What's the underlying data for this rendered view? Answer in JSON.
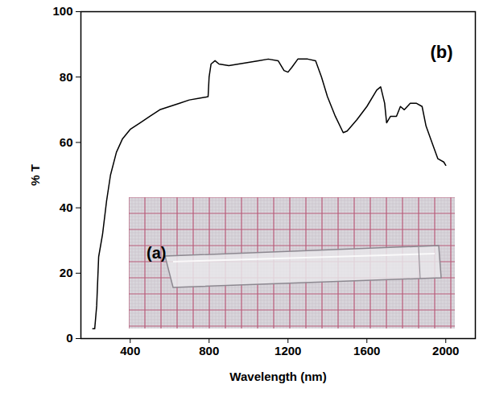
{
  "chart_data": {
    "type": "line",
    "x_label": "Wavelength (nm)",
    "y_label": "% T",
    "annotations": [
      "(b)",
      "(a)"
    ],
    "color": "#000000",
    "x": [
      210,
      220,
      230,
      240,
      260,
      280,
      300,
      330,
      360,
      400,
      450,
      500,
      550,
      600,
      650,
      700,
      750,
      795,
      800,
      810,
      830,
      850,
      900,
      950,
      1000,
      1050,
      1100,
      1150,
      1180,
      1200,
      1220,
      1250,
      1300,
      1340,
      1370,
      1400,
      1440,
      1480,
      1500,
      1550,
      1600,
      1650,
      1670,
      1690,
      1700,
      1720,
      1750,
      1770,
      1790,
      1820,
      1850,
      1880,
      1900,
      1930,
      1960,
      1990,
      2000
    ],
    "values": [
      3,
      3,
      10,
      25,
      32,
      42,
      50,
      57,
      61,
      64,
      66,
      68,
      70,
      71,
      72,
      73,
      73.5,
      74,
      80,
      84,
      85,
      84,
      83.5,
      84,
      84.5,
      85,
      85.5,
      85,
      82,
      81.5,
      83,
      85.5,
      85.5,
      85,
      80,
      74,
      68,
      63,
      63.5,
      67,
      71,
      76,
      77,
      72,
      66,
      68,
      68,
      71,
      70,
      72,
      72,
      71,
      65,
      60,
      55,
      54,
      53
    ],
    "xlim": [
      150,
      2150
    ],
    "ylim": [
      0,
      100
    ],
    "xticks": [
      400,
      800,
      1200,
      1600,
      2000
    ],
    "yticks": [
      0,
      20,
      40,
      60,
      80,
      100
    ],
    "grid": false
  }
}
